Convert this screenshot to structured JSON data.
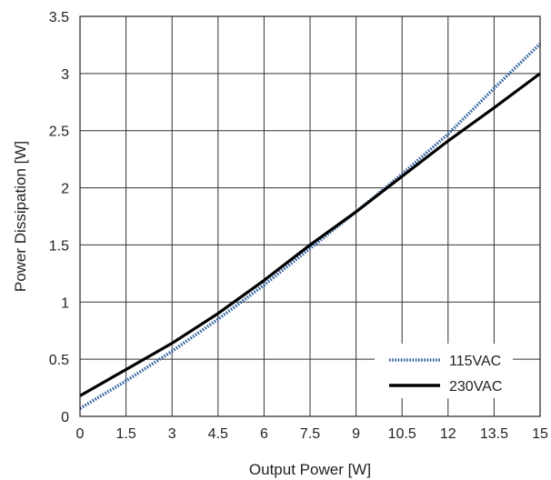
{
  "chart_data": {
    "type": "line",
    "title": "",
    "xlabel": "Output Power [W]",
    "ylabel": "Power Dissipation [W]",
    "xlim": [
      0,
      15
    ],
    "ylim": [
      0,
      3.5
    ],
    "xticks": [
      "0",
      "1.5",
      "3",
      "4.5",
      "6",
      "7.5",
      "9",
      "10.5",
      "12",
      "13.5",
      "15"
    ],
    "yticks": [
      "0",
      "0.5",
      "1",
      "1.5",
      "2",
      "2.5",
      "3",
      "3.5"
    ],
    "grid": true,
    "legend_position": "bottom-right",
    "series": [
      {
        "name": "115VAC",
        "color": "#2f5fa0",
        "style": "dotted",
        "x": [
          0,
          1.5,
          3,
          4.5,
          6,
          7.5,
          9,
          10.5,
          12,
          13.5,
          15
        ],
        "y": [
          0.07,
          0.31,
          0.57,
          0.85,
          1.15,
          1.47,
          1.79,
          2.12,
          2.47,
          2.87,
          3.26
        ]
      },
      {
        "name": "230VAC",
        "color": "#000000",
        "style": "solid",
        "x": [
          0,
          1.5,
          3,
          4.5,
          6,
          7.5,
          9,
          10.5,
          12,
          13.5,
          15
        ],
        "y": [
          0.18,
          0.41,
          0.64,
          0.9,
          1.19,
          1.5,
          1.79,
          2.1,
          2.41,
          2.7,
          3.0
        ]
      }
    ]
  }
}
